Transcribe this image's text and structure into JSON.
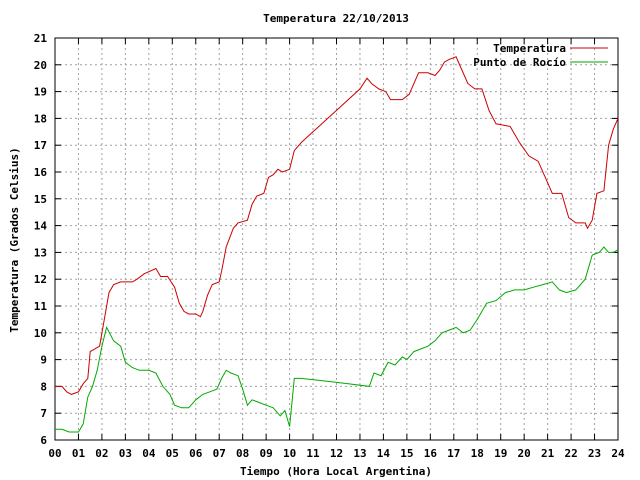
{
  "chart_data": {
    "type": "line",
    "title": "Temperatura 22/10/2013",
    "xlabel": "Tiempo (Hora Local Argentina)",
    "ylabel": "Temperatura (Grados Celsius)",
    "xlim": [
      0,
      24
    ],
    "ylim": [
      6,
      21
    ],
    "grid": true,
    "legend_position": "top-right",
    "x_ticks": [
      "00",
      "01",
      "02",
      "03",
      "04",
      "05",
      "06",
      "07",
      "08",
      "09",
      "10",
      "11",
      "12",
      "13",
      "14",
      "15",
      "16",
      "17",
      "18",
      "19",
      "20",
      "21",
      "22",
      "23",
      "24"
    ],
    "y_ticks": [
      "6",
      "7",
      "8",
      "9",
      "10",
      "11",
      "12",
      "13",
      "14",
      "15",
      "16",
      "17",
      "18",
      "19",
      "20",
      "21"
    ],
    "series": [
      {
        "name": "Temperatura",
        "color": "#cc0000",
        "points": [
          [
            0.0,
            8.0
          ],
          [
            0.3,
            8.0
          ],
          [
            0.5,
            7.8
          ],
          [
            0.7,
            7.7
          ],
          [
            1.0,
            7.8
          ],
          [
            1.2,
            8.1
          ],
          [
            1.4,
            8.3
          ],
          [
            1.5,
            9.3
          ],
          [
            1.9,
            9.5
          ],
          [
            2.1,
            10.5
          ],
          [
            2.3,
            11.5
          ],
          [
            2.5,
            11.8
          ],
          [
            2.8,
            11.9
          ],
          [
            3.3,
            11.9
          ],
          [
            3.5,
            12.0
          ],
          [
            3.8,
            12.2
          ],
          [
            4.3,
            12.4
          ],
          [
            4.5,
            12.1
          ],
          [
            4.8,
            12.1
          ],
          [
            5.1,
            11.7
          ],
          [
            5.3,
            11.1
          ],
          [
            5.5,
            10.8
          ],
          [
            5.7,
            10.7
          ],
          [
            6.0,
            10.7
          ],
          [
            6.2,
            10.6
          ],
          [
            6.3,
            10.8
          ],
          [
            6.5,
            11.4
          ],
          [
            6.7,
            11.8
          ],
          [
            7.0,
            11.9
          ],
          [
            7.1,
            12.3
          ],
          [
            7.3,
            13.2
          ],
          [
            7.6,
            13.9
          ],
          [
            7.8,
            14.1
          ],
          [
            8.2,
            14.2
          ],
          [
            8.4,
            14.8
          ],
          [
            8.6,
            15.1
          ],
          [
            8.9,
            15.2
          ],
          [
            9.1,
            15.8
          ],
          [
            9.3,
            15.9
          ],
          [
            9.5,
            16.1
          ],
          [
            9.7,
            16.0
          ],
          [
            10.0,
            16.1
          ],
          [
            10.2,
            16.8
          ],
          [
            10.5,
            17.1
          ],
          [
            11.0,
            17.5
          ],
          [
            12.0,
            18.3
          ],
          [
            13.0,
            19.1
          ],
          [
            13.3,
            19.5
          ],
          [
            13.5,
            19.3
          ],
          [
            13.8,
            19.1
          ],
          [
            14.1,
            19.0
          ],
          [
            14.3,
            18.7
          ],
          [
            14.8,
            18.7
          ],
          [
            15.1,
            18.9
          ],
          [
            15.3,
            19.3
          ],
          [
            15.5,
            19.7
          ],
          [
            15.9,
            19.7
          ],
          [
            16.2,
            19.6
          ],
          [
            16.4,
            19.8
          ],
          [
            16.6,
            20.1
          ],
          [
            16.8,
            20.2
          ],
          [
            17.1,
            20.3
          ],
          [
            17.3,
            19.9
          ],
          [
            17.6,
            19.3
          ],
          [
            17.9,
            19.1
          ],
          [
            18.2,
            19.1
          ],
          [
            18.5,
            18.3
          ],
          [
            18.8,
            17.8
          ],
          [
            19.4,
            17.7
          ],
          [
            19.8,
            17.1
          ],
          [
            20.2,
            16.6
          ],
          [
            20.6,
            16.4
          ],
          [
            20.9,
            15.8
          ],
          [
            21.2,
            15.2
          ],
          [
            21.6,
            15.2
          ],
          [
            21.9,
            14.3
          ],
          [
            22.2,
            14.1
          ],
          [
            22.6,
            14.1
          ],
          [
            22.7,
            13.9
          ],
          [
            22.9,
            14.2
          ],
          [
            23.1,
            15.2
          ],
          [
            23.4,
            15.3
          ],
          [
            23.6,
            17.0
          ],
          [
            23.8,
            17.6
          ],
          [
            24.0,
            18.0
          ]
        ]
      },
      {
        "name": "Punto de Rocío",
        "color": "#00aa00",
        "points": [
          [
            0.0,
            6.4
          ],
          [
            0.3,
            6.4
          ],
          [
            0.6,
            6.3
          ],
          [
            1.0,
            6.3
          ],
          [
            1.2,
            6.6
          ],
          [
            1.4,
            7.6
          ],
          [
            1.6,
            8.0
          ],
          [
            1.8,
            8.6
          ],
          [
            2.0,
            9.5
          ],
          [
            2.2,
            10.2
          ],
          [
            2.5,
            9.7
          ],
          [
            2.8,
            9.5
          ],
          [
            3.0,
            8.9
          ],
          [
            3.3,
            8.7
          ],
          [
            3.6,
            8.6
          ],
          [
            4.0,
            8.6
          ],
          [
            4.3,
            8.5
          ],
          [
            4.6,
            8.0
          ],
          [
            4.9,
            7.7
          ],
          [
            5.1,
            7.3
          ],
          [
            5.4,
            7.2
          ],
          [
            5.7,
            7.2
          ],
          [
            6.0,
            7.5
          ],
          [
            6.3,
            7.7
          ],
          [
            6.6,
            7.8
          ],
          [
            6.9,
            7.9
          ],
          [
            7.1,
            8.3
          ],
          [
            7.3,
            8.6
          ],
          [
            7.5,
            8.5
          ],
          [
            7.8,
            8.4
          ],
          [
            8.0,
            7.9
          ],
          [
            8.2,
            7.3
          ],
          [
            8.4,
            7.5
          ],
          [
            8.7,
            7.4
          ],
          [
            9.0,
            7.3
          ],
          [
            9.3,
            7.2
          ],
          [
            9.6,
            6.9
          ],
          [
            9.8,
            7.1
          ],
          [
            10.0,
            6.5
          ],
          [
            10.2,
            8.3
          ],
          [
            10.5,
            8.3
          ],
          [
            11.5,
            8.2
          ],
          [
            12.5,
            8.1
          ],
          [
            13.4,
            8.0
          ],
          [
            13.6,
            8.5
          ],
          [
            13.9,
            8.4
          ],
          [
            14.2,
            8.9
          ],
          [
            14.5,
            8.8
          ],
          [
            14.8,
            9.1
          ],
          [
            15.0,
            9.0
          ],
          [
            15.3,
            9.3
          ],
          [
            15.6,
            9.4
          ],
          [
            15.9,
            9.5
          ],
          [
            16.2,
            9.7
          ],
          [
            16.5,
            10.0
          ],
          [
            16.8,
            10.1
          ],
          [
            17.1,
            10.2
          ],
          [
            17.4,
            10.0
          ],
          [
            17.7,
            10.1
          ],
          [
            18.0,
            10.5
          ],
          [
            18.4,
            11.1
          ],
          [
            18.8,
            11.2
          ],
          [
            19.2,
            11.5
          ],
          [
            19.6,
            11.6
          ],
          [
            20.0,
            11.6
          ],
          [
            20.4,
            11.7
          ],
          [
            20.8,
            11.8
          ],
          [
            21.2,
            11.9
          ],
          [
            21.5,
            11.6
          ],
          [
            21.8,
            11.5
          ],
          [
            22.2,
            11.6
          ],
          [
            22.6,
            12.0
          ],
          [
            22.9,
            12.9
          ],
          [
            23.2,
            13.0
          ],
          [
            23.4,
            13.2
          ],
          [
            23.6,
            13.0
          ],
          [
            23.8,
            13.0
          ],
          [
            24.0,
            13.1
          ]
        ]
      }
    ]
  }
}
